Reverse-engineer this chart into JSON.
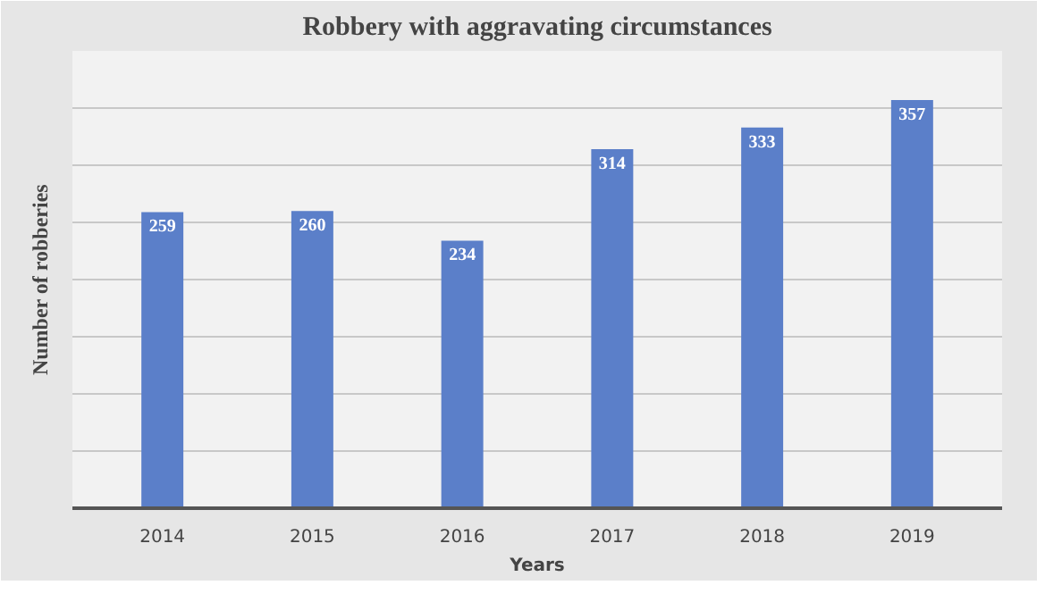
{
  "chart_data": {
    "type": "bar",
    "title": "Robbery with aggravating circumstances",
    "xlabel": "Years",
    "ylabel": "Number of robberies",
    "categories": [
      "2014",
      "2015",
      "2016",
      "2017",
      "2018",
      "2019"
    ],
    "values": [
      259,
      260,
      234,
      314,
      333,
      357
    ],
    "color": "#5b7fc9",
    "ylim": [
      0,
      400
    ],
    "yticks": [
      {
        "value": 0,
        "label": null
      },
      {
        "value": 50,
        "label": null
      },
      {
        "value": 100,
        "label": null
      },
      {
        "value": 150,
        "label": null
      },
      {
        "value": 200,
        "label": null
      },
      {
        "value": 250,
        "label": null
      },
      {
        "value": 300,
        "label": null
      },
      {
        "value": 350,
        "label": null
      },
      {
        "value": 400,
        "label": null
      }
    ],
    "tick_labels": "x",
    "grid": "y",
    "data_labels": true
  }
}
